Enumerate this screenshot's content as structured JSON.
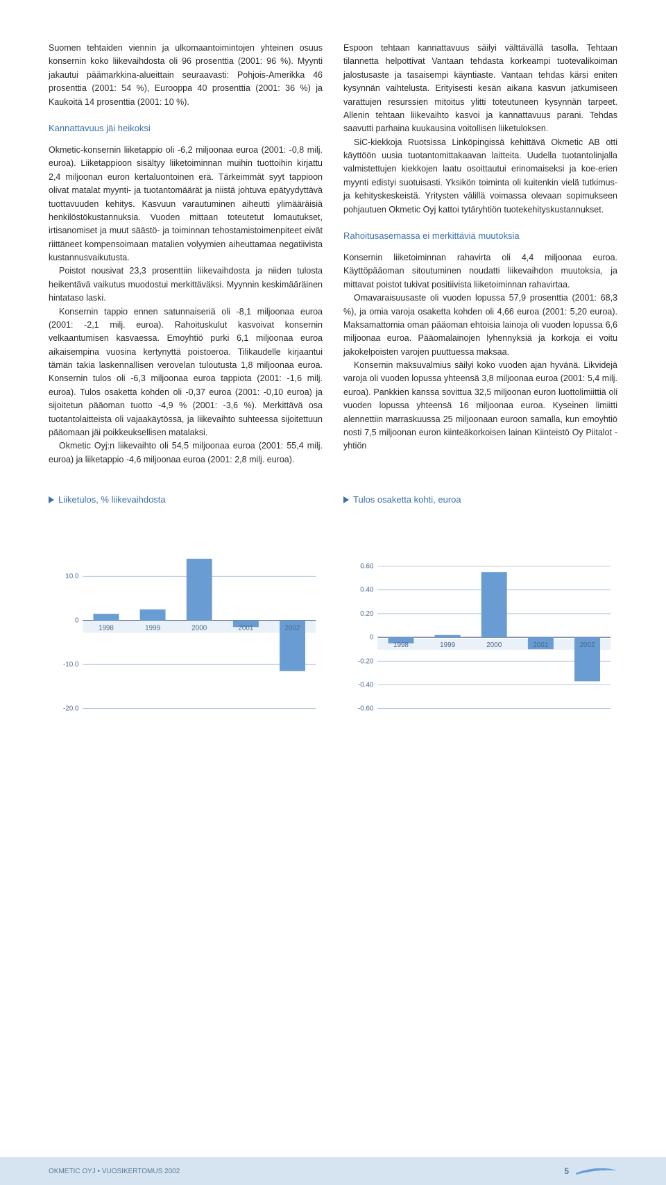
{
  "leftColumn": {
    "p1": "Suomen tehtaiden viennin ja ulkomaantoimintojen yhteinen osuus konsernin koko liikevaihdosta oli 96 prosenttia (2001: 96 %). Myynti jakautui päämarkkina-alueittain seuraavasti: Pohjois-Amerikka 46 prosenttia (2001: 54 %), Eurooppa 40 prosenttia (2001: 36 %) ja Kaukoitä 14 prosenttia (2001: 10 %).",
    "h1": "Kannattavuus jäi heikoksi",
    "p2": "Okmetic-konsernin liiketappio oli -6,2 miljoonaa euroa (2001: -0,8 milj. euroa). Liiketappioon sisältyy liiketoiminnan muihin tuottoihin kirjattu 2,4 miljoonan euron kertaluontoinen erä. Tärkeimmät syyt tappioon olivat matalat myynti- ja tuotantomäärät ja niistä johtuva epätyydyttävä tuottavuuden kehitys. Kasvuun varautuminen aiheutti ylimääräisiä henkilöstökustannuksia. Vuoden mittaan toteutetut lomautukset, irtisanomiset ja muut säästö- ja toiminnan tehostamistoimenpiteet eivät riittäneet kompensoimaan matalien volyymien aiheuttamaa negatiivista kustannusvaikutusta.",
    "p3": "Poistot nousivat 23,3 prosenttiin liikevaihdosta ja niiden tulosta heikentävä vaikutus muodostui merkittäväksi. Myynnin keskimääräinen hintataso laski.",
    "p4": "Konsernin tappio ennen satunnaiseriä oli -8,1 miljoonaa euroa (2001: -2,1 milj. euroa). Rahoituskulut kasvoivat konsernin velkaantumisen kasvaessa. Emoyhtiö purki 6,1 miljoonaa euroa aikaisempina vuosina kertynyttä poistoeroa. Tilikaudelle kirjaantui tämän takia laskennallisen verovelan tuloutusta 1,8 miljoonaa euroa. Konsernin tulos oli -6,3 miljoonaa euroa tappiota (2001: -1,6 milj. euroa). Tulos osaketta kohden oli -0,37 euroa (2001: -0,10 euroa) ja sijoitetun pääoman tuotto -4,9 % (2001: -3,6 %). Merkittävä osa tuotantolaitteista oli vajaakäytössä, ja liikevaihto suhteessa sijoitettuun pääomaan jäi poikkeuksellisen matalaksi.",
    "p5": "Okmetic Oyj:n liikevaihto oli 54,5 miljoonaa euroa (2001: 55,4 milj. euroa) ja liiketappio -4,6 miljoonaa euroa (2001: 2,8 milj. euroa)."
  },
  "rightColumn": {
    "p1": "Espoon tehtaan kannattavuus säilyi välttävällä tasolla. Tehtaan tilannetta helpottivat Vantaan tehdasta korkeampi tuotevalikoiman jalostusaste ja tasaisempi käyntiaste. Vantaan tehdas kärsi eniten kysynnän vaihtelusta. Erityisesti kesän aikana kasvun jatkumiseen varattujen resurssien mitoitus ylitti toteutuneen kysynnän tarpeet. Allenin tehtaan liikevaihto kasvoi ja kannattavuus parani. Tehdas saavutti parhaina kuukausina voitollisen liiketuloksen.",
    "p2": "SiC-kiekkoja Ruotsissa Linköpingissä kehittävä Okmetic AB otti käyttöön uusia tuotantomittakaavan laitteita. Uudella tuotantolinjalla valmistettujen kiekkojen laatu osoittautui erinomaiseksi ja koe-erien myynti edistyi suotuisasti. Yksikön toiminta oli kuitenkin vielä tutkimus- ja kehityskeskeistä. Yritysten välillä voimassa olevaan sopimukseen pohjautuen Okmetic Oyj kattoi tytäryhtiön tuotekehityskustannukset.",
    "h1": "Rahoitusasemassa ei merkittäviä muutoksia",
    "p3": "Konsernin liiketoiminnan rahavirta oli 4,4 miljoonaa euroa. Käyttöpääoman sitoutuminen noudatti liikevaihdon muutoksia, ja mittavat poistot tukivat positiivista liiketoiminnan rahavirtaa.",
    "p4": "Omavaraisuusaste oli vuoden lopussa 57,9 prosenttia (2001: 68,3 %), ja omia varoja osaketta kohden oli 4,66 euroa (2001: 5,20 euroa). Maksamattomia oman pääoman ehtoisia lainoja oli vuoden lopussa 6,6 miljoonaa euroa. Pääomalainojen lyhennyksiä ja korkoja ei voitu jakokelpoisten varojen puuttuessa maksaa.",
    "p5": "Konsernin maksuvalmius säilyi koko vuoden ajan hyvänä. Likvidejä varoja oli vuoden lopussa yhteensä 3,8 miljoonaa euroa (2001: 5,4 milj. euroa). Pankkien kanssa sovittua 32,5 miljoonan euron luottolimiittiä oli vuoden lopussa yhteensä 16 miljoonaa euroa. Kyseinen limiitti alennettiin marraskuussa 25 miljoonaan euroon samalla, kun emoyhtiö nosti 7,5 miljoonan euron kiinteäkorkoisen lainan Kiinteistö Oy Piitalot -yhtiön"
  },
  "chart1": {
    "title": "Liiketulos, % liikevaihdosta",
    "type": "bar",
    "categories": [
      "1998",
      "1999",
      "2000",
      "2001",
      "2002"
    ],
    "values": [
      1.5,
      2.5,
      14.0,
      -1.5,
      -11.5
    ],
    "ymin": -20.0,
    "ymax": 15.0,
    "yticks": [
      -20.0,
      -10.0,
      0,
      10.0
    ],
    "bar_color": "#6a9cd4",
    "grid_color": "#9ab4ce",
    "label_color": "#4a6a8a",
    "label_fontsize": 10
  },
  "chart2": {
    "title": "Tulos osaketta kohti, euroa",
    "type": "bar",
    "categories": [
      "1998",
      "1999",
      "2000",
      "2001",
      "2002"
    ],
    "values": [
      -0.05,
      0.02,
      0.55,
      -0.1,
      -0.37
    ],
    "ymin": -0.6,
    "ymax": 0.7,
    "yticks": [
      -0.6,
      -0.4,
      -0.2,
      0,
      0.2,
      0.4,
      0.6
    ],
    "bar_color": "#6a9cd4",
    "grid_color": "#9ab4ce",
    "label_color": "#4a6a8a",
    "label_fontsize": 10
  },
  "footer": {
    "left": "OKMETIC OYJ • VUOSIKERTOMUS 2002",
    "page": "5"
  }
}
